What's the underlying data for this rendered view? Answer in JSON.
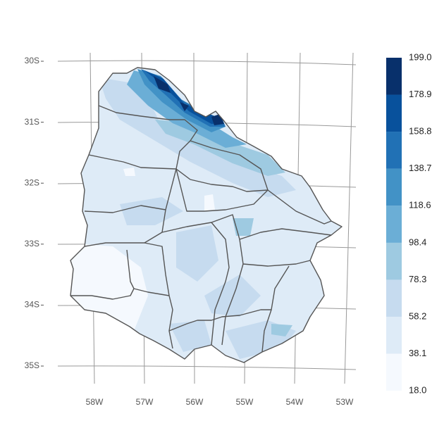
{
  "map": {
    "lat_labels": [
      "30S",
      "31S",
      "32S",
      "33S",
      "34S",
      "35S"
    ],
    "lon_labels": [
      "58W",
      "57W",
      "56W",
      "55W",
      "54W",
      "53W"
    ],
    "legend": {
      "breaks": [
        {
          "value": 18,
          "label": "18.0"
        },
        38.1,
        58.2,
        78.3,
        98.4,
        118.6,
        138.7,
        158.8,
        178.9,
        {
          "value": 199,
          "label": "199.0"
        }
      ],
      "colors": [
        "#f5f9fe",
        "#deebf7",
        "#c6dbef",
        "#9ecae1",
        "#6baed6",
        "#4292c6",
        "#2171b5",
        "#08519c",
        "#08306b"
      ]
    }
  }
}
